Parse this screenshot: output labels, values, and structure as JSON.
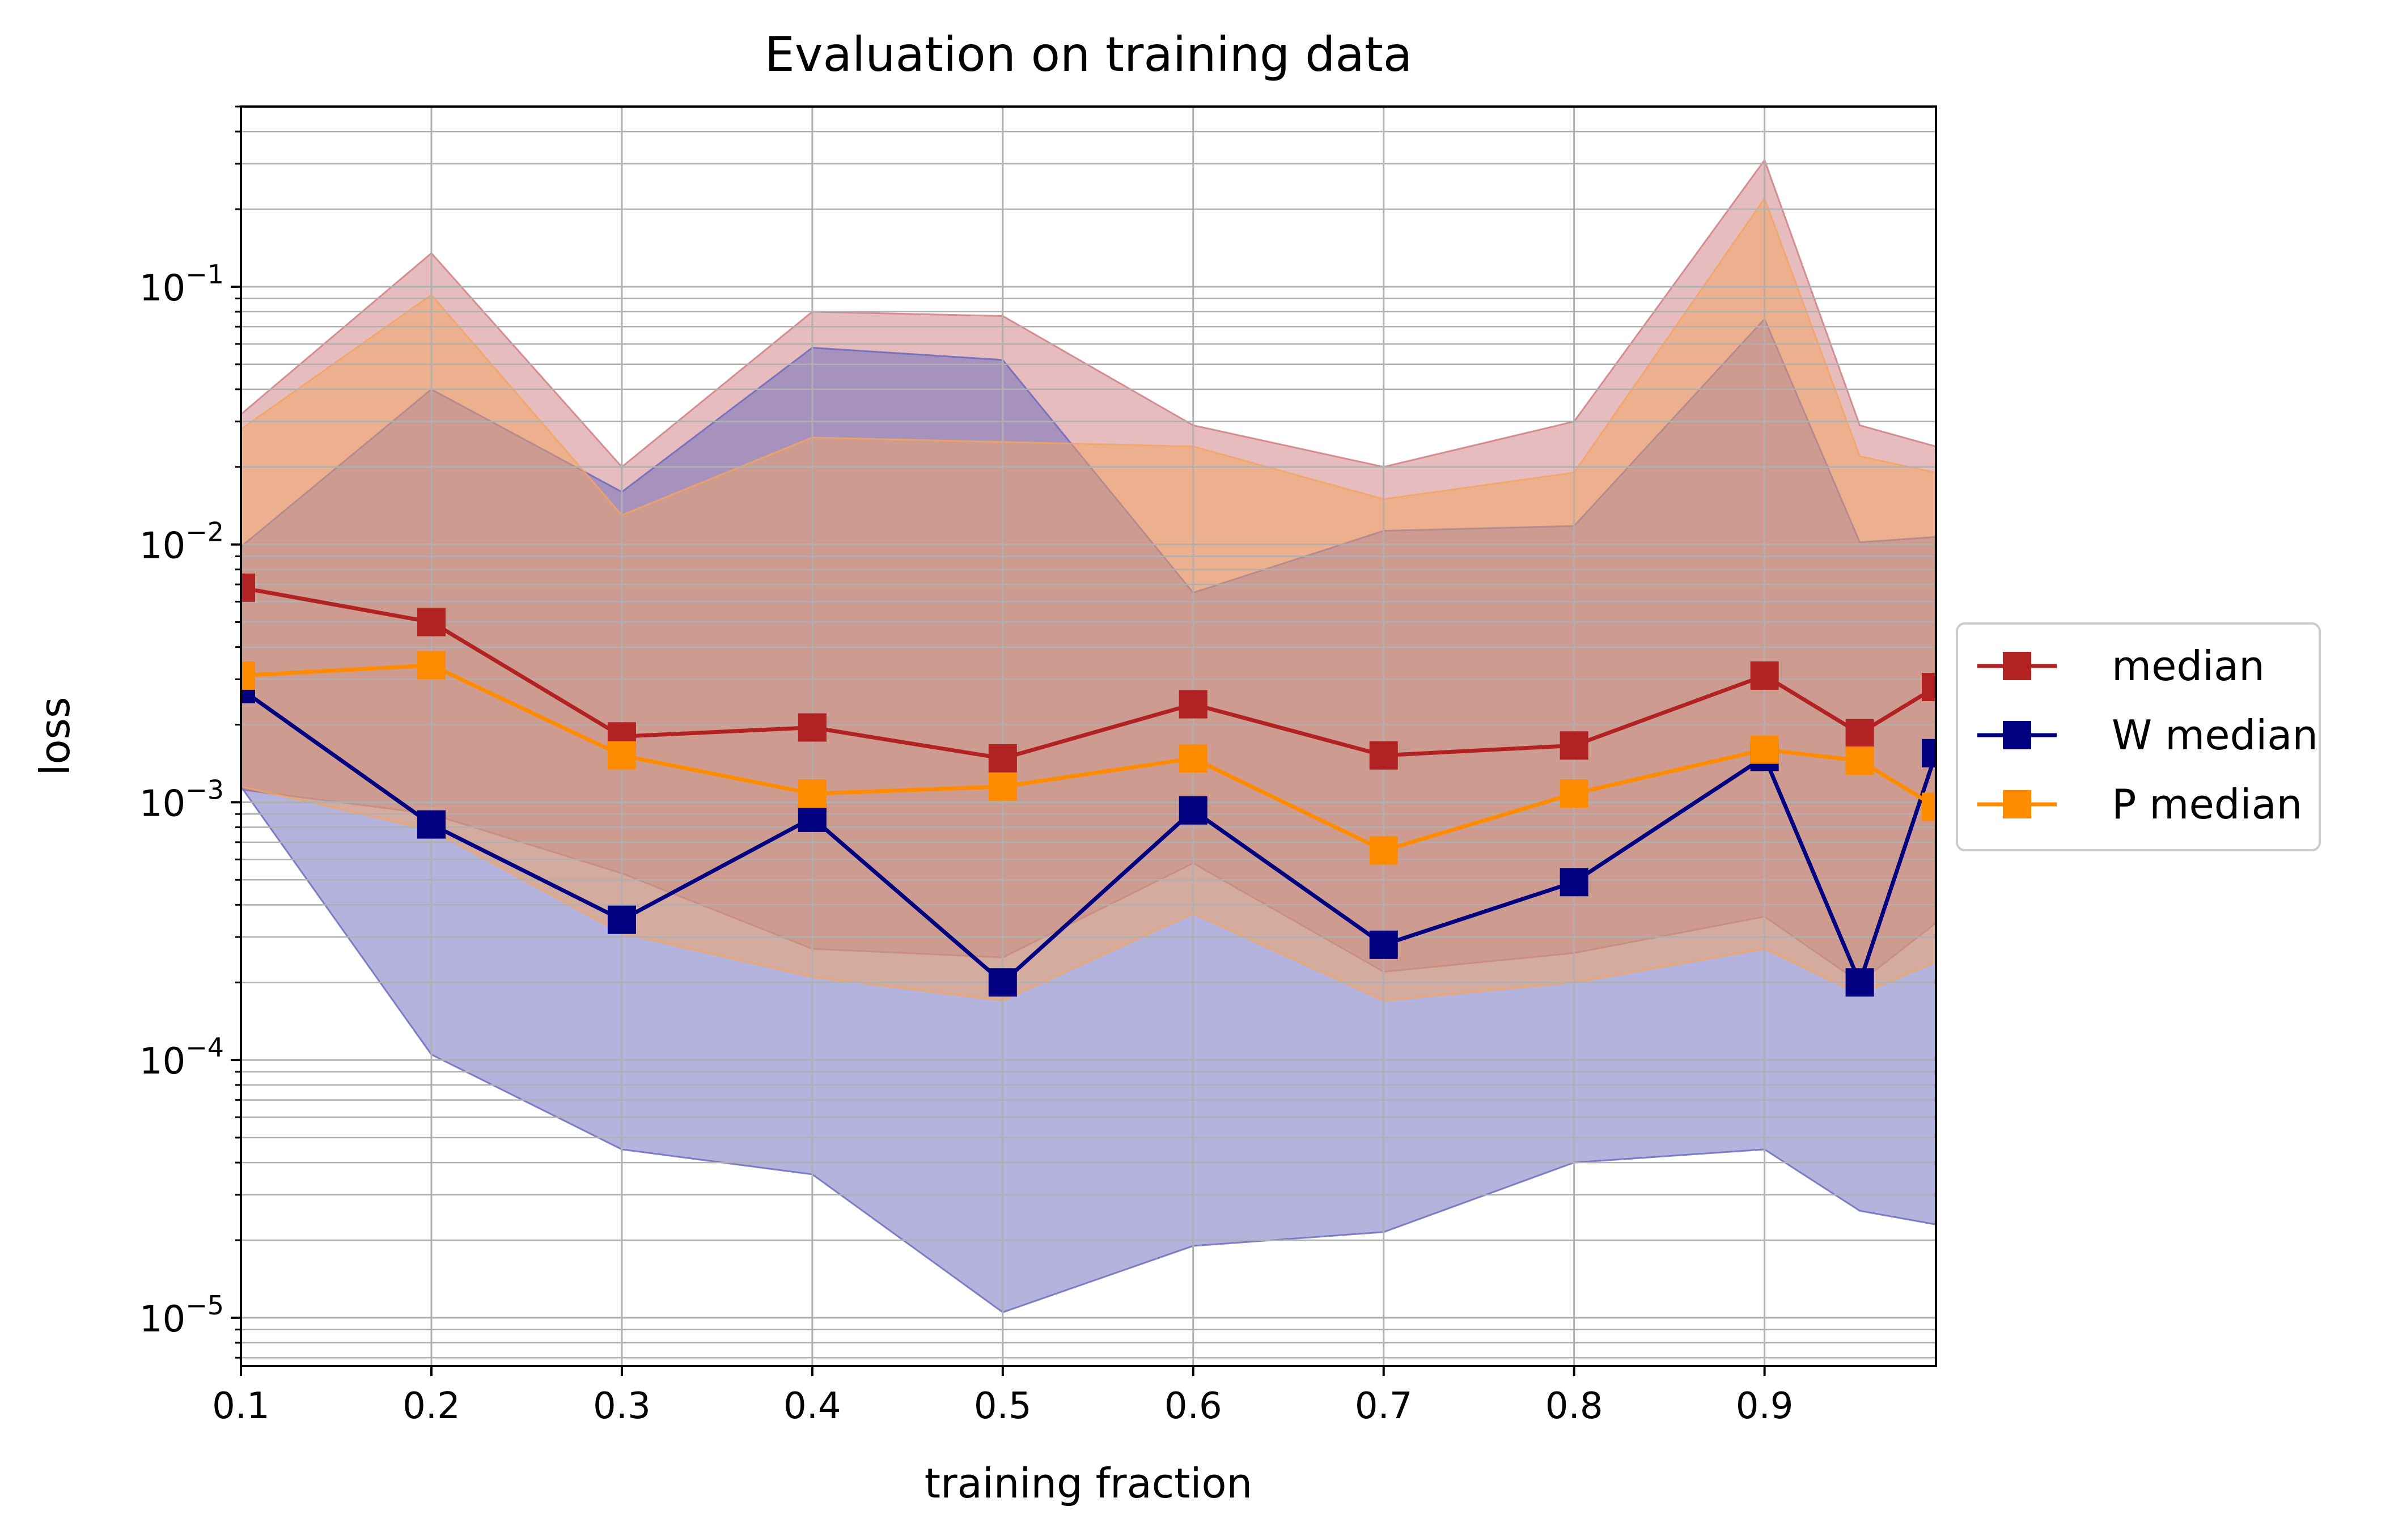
{
  "chart_data": {
    "type": "line",
    "title": "Evaluation on training data",
    "xlabel": "training fraction",
    "ylabel": "loss",
    "yscale": "log",
    "xlim": [
      0.1,
      0.99
    ],
    "ylim": [
      6.5e-06,
      0.5
    ],
    "grid": true,
    "legend": "center-right-outside",
    "x": [
      0.1,
      0.2,
      0.3,
      0.4,
      0.5,
      0.6,
      0.7,
      0.8,
      0.9,
      0.95,
      0.99
    ],
    "x_ticks": [
      {
        "value": 0.1,
        "label": "0.1"
      },
      {
        "value": 0.2,
        "label": "0.2"
      },
      {
        "value": 0.3,
        "label": "0.3"
      },
      {
        "value": 0.4,
        "label": "0.4"
      },
      {
        "value": 0.5,
        "label": "0.5"
      },
      {
        "value": 0.6,
        "label": "0.6"
      },
      {
        "value": 0.7,
        "label": "0.7"
      },
      {
        "value": 0.8,
        "label": "0.8"
      },
      {
        "value": 0.9,
        "label": "0.9"
      }
    ],
    "y_ticks": [
      {
        "value": 0.1,
        "base": "10",
        "exp": "−1"
      },
      {
        "value": 0.01,
        "base": "10",
        "exp": "−2"
      },
      {
        "value": 0.001,
        "base": "10",
        "exp": "−3"
      },
      {
        "value": 0.0001,
        "base": "10",
        "exp": "−4"
      },
      {
        "value": 1e-05,
        "base": "10",
        "exp": "−5"
      }
    ],
    "series": [
      {
        "name": "median",
        "color": "#b22222",
        "values": [
          0.0068,
          0.005,
          0.0018,
          0.00195,
          0.00148,
          0.0024,
          0.00152,
          0.00166,
          0.0031,
          0.00185,
          0.0028
        ],
        "band_low": [
          0.00112,
          0.0009,
          0.00053,
          0.00027,
          0.00025,
          0.00058,
          0.00022,
          0.00026,
          0.00036,
          0.0002,
          0.00034
        ],
        "band_high": [
          0.032,
          0.135,
          0.02,
          0.08,
          0.077,
          0.029,
          0.02,
          0.03,
          0.31,
          0.029,
          0.024
        ],
        "band_color": "#cd7a7e"
      },
      {
        "name": "W median",
        "color": "#000080",
        "values": [
          0.00275,
          0.00082,
          0.00035,
          0.00087,
          0.0002,
          0.00093,
          0.00028,
          0.00049,
          0.0015,
          0.0002,
          0.00155
        ],
        "band_low": [
          0.00115,
          0.000105,
          4.5e-05,
          3.6e-05,
          1.05e-05,
          1.9e-05,
          2.15e-05,
          4e-05,
          4.5e-05,
          2.6e-05,
          2.3e-05
        ],
        "band_high": [
          0.0098,
          0.04,
          0.016,
          0.058,
          0.052,
          0.0065,
          0.0113,
          0.0118,
          0.075,
          0.0102,
          0.0107
        ],
        "band_color": "#6767bd"
      },
      {
        "name": "P median",
        "color": "#ff8c00",
        "values": [
          0.0031,
          0.0034,
          0.00152,
          0.00108,
          0.00115,
          0.00148,
          0.00065,
          0.00108,
          0.0016,
          0.00145,
          0.00096
        ],
        "band_low": [
          0.00115,
          0.00078,
          0.00031,
          0.00021,
          0.00017,
          0.00037,
          0.00017,
          0.0002,
          0.00027,
          0.00018,
          0.00024
        ],
        "band_high": [
          0.028,
          0.093,
          0.013,
          0.026,
          0.025,
          0.024,
          0.015,
          0.019,
          0.22,
          0.022,
          0.019
        ],
        "band_color": "#f4a460"
      }
    ]
  }
}
